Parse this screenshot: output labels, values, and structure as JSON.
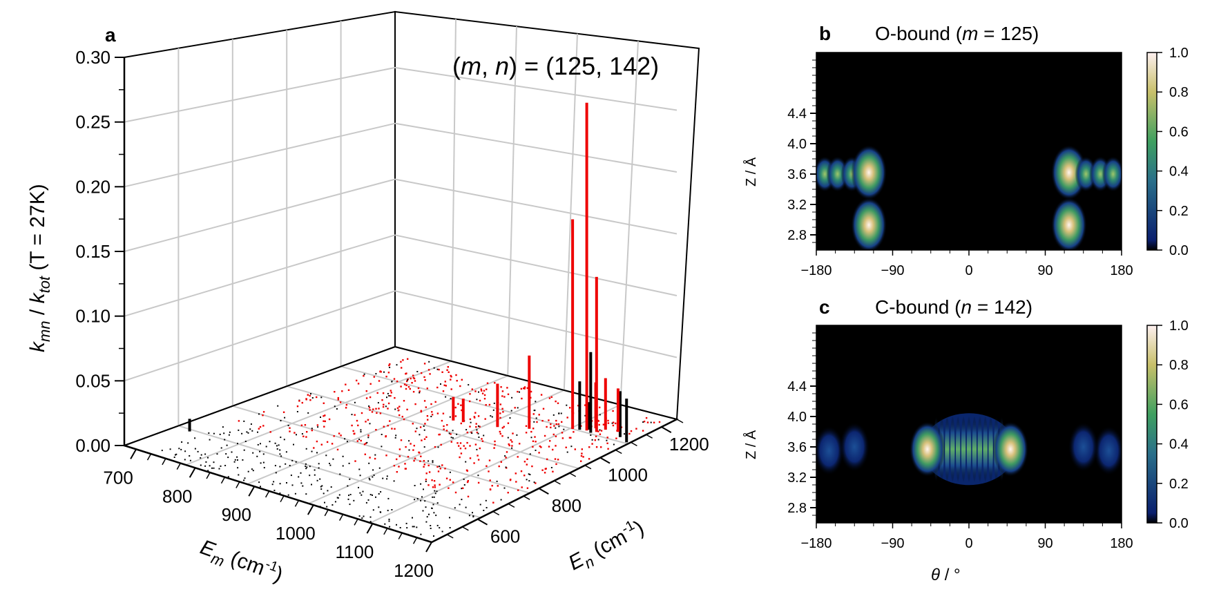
{
  "chart_data": [
    {
      "panel": "a",
      "type": "bar",
      "subtype": "3d-stem",
      "annotation": "(m, n) = (125, 142)",
      "zlabel": "k_mn / k_tot (T = 27K)",
      "xlabel": "E_m (cm-1)",
      "ylabel": "E_n (cm-1)",
      "z_ticks": [
        "0.00",
        "0.05",
        "0.10",
        "0.15",
        "0.20",
        "0.25",
        "0.30"
      ],
      "x_ticks": [
        "700",
        "800",
        "900",
        "1000",
        "1100",
        "1200"
      ],
      "y_ticks": [
        "600",
        "800",
        "1000",
        "1200"
      ],
      "zlim": [
        0,
        0.3
      ],
      "xlim": [
        680,
        1200
      ],
      "ylim": [
        450,
        1250
      ],
      "grid": true,
      "colors": {
        "red_series": "#ee0000",
        "black_series": "#000000",
        "grid": "#c8c8c8"
      },
      "red_stems": [
        {
          "Em": 1120,
          "En": 1100,
          "value": 0.285
        },
        {
          "Em": 1100,
          "En": 1090,
          "value": 0.182
        },
        {
          "Em": 1135,
          "En": 1105,
          "value": 0.135
        },
        {
          "Em": 1050,
          "En": 1040,
          "value": 0.063
        },
        {
          "Em": 1010,
          "En": 1010,
          "value": 0.037
        },
        {
          "Em": 960,
          "En": 990,
          "value": 0.02
        },
        {
          "Em": 945,
          "En": 985,
          "value": 0.02
        },
        {
          "Em": 1160,
          "En": 1130,
          "value": 0.038
        },
        {
          "Em": 1125,
          "En": 1120,
          "value": 0.04
        },
        {
          "Em": 1140,
          "En": 1125,
          "value": 0.045
        }
      ],
      "black_stems": [
        {
          "Em": 1130,
          "En": 1095,
          "value": 0.07
        },
        {
          "Em": 1110,
          "En": 1095,
          "value": 0.042
        },
        {
          "Em": 1175,
          "En": 1110,
          "value": 0.04
        },
        {
          "Em": 1195,
          "En": 1095,
          "value": 0.038
        },
        {
          "Em": 1120,
          "En": 1105,
          "value": 0.024
        },
        {
          "Em": 705,
          "En": 600,
          "value": 0.01
        }
      ]
    },
    {
      "panel": "b",
      "type": "heatmap",
      "title": "O-bound (m = 125)",
      "xlabel": "",
      "ylabel": "Z / Å",
      "x_ticks": [
        "−180",
        "−90",
        "0",
        "90",
        "180"
      ],
      "y_ticks": [
        "2.8",
        "3.2",
        "3.6",
        "4.0",
        "4.4"
      ],
      "xlim": [
        -180,
        180
      ],
      "ylim": [
        2.6,
        5.2
      ],
      "colorbar_ticks": [
        "0.0",
        "0.2",
        "0.4",
        "0.6",
        "0.8",
        "1.0"
      ],
      "colorbar_range": [
        0,
        1
      ],
      "colormap": [
        "#000000",
        "#0a1f6e",
        "#2a6f8a",
        "#3fa060",
        "#c8c06a",
        "#ffffff"
      ],
      "lobes": [
        {
          "theta": -170,
          "z": 3.6,
          "value": 0.55
        },
        {
          "theta": -155,
          "z": 3.6,
          "value": 0.6
        },
        {
          "theta": -138,
          "z": 3.6,
          "value": 0.55
        },
        {
          "theta": -118,
          "z": 3.62,
          "value": 0.95
        },
        {
          "theta": -118,
          "z": 2.93,
          "value": 0.9
        },
        {
          "theta": 118,
          "z": 3.62,
          "value": 0.95
        },
        {
          "theta": 118,
          "z": 2.93,
          "value": 0.9
        },
        {
          "theta": 138,
          "z": 3.6,
          "value": 0.55
        },
        {
          "theta": 155,
          "z": 3.6,
          "value": 0.6
        },
        {
          "theta": 170,
          "z": 3.6,
          "value": 0.55
        }
      ]
    },
    {
      "panel": "c",
      "type": "heatmap",
      "title": "C-bound (n = 142)",
      "xlabel": "θ / °",
      "ylabel": "Z / Å",
      "x_ticks": [
        "−180",
        "−90",
        "0",
        "90",
        "180"
      ],
      "y_ticks": [
        "2.8",
        "3.2",
        "3.6",
        "4.0",
        "4.4"
      ],
      "xlim": [
        -180,
        180
      ],
      "ylim": [
        2.6,
        5.2
      ],
      "colorbar_ticks": [
        "0.0",
        "0.2",
        "0.4",
        "0.6",
        "0.8",
        "1.0"
      ],
      "colorbar_range": [
        0,
        1
      ],
      "colormap": [
        "#000000",
        "#0a1f6e",
        "#2a6f8a",
        "#3fa060",
        "#c8c06a",
        "#ffffff"
      ],
      "fringes": {
        "theta_min": -50,
        "theta_max": 50,
        "z_center": 3.57,
        "count": 13
      },
      "lobes": [
        {
          "theta": -49,
          "z": 3.57,
          "value": 1.0
        },
        {
          "theta": 49,
          "z": 3.57,
          "value": 1.0
        },
        {
          "theta": -165,
          "z": 3.55,
          "value": 0.25
        },
        {
          "theta": 165,
          "z": 3.55,
          "value": 0.25
        },
        {
          "theta": -135,
          "z": 3.6,
          "value": 0.2
        },
        {
          "theta": 135,
          "z": 3.6,
          "value": 0.2
        }
      ]
    }
  ],
  "labels": {
    "a": "a",
    "b": "b",
    "c": "c",
    "annotation_prefix": "(",
    "m": "m",
    "n": "n",
    "annotation_suffix": ") = (125, 142)",
    "z_k": "k",
    "z_mn": "mn",
    "z_sep": " / ",
    "z_ktot_k": "k",
    "z_tot": "tot",
    "z_tail": " (T = 27K)",
    "xE": "E",
    "xm": "m",
    "x_unit": " (cm",
    "x_exp": "-1",
    "x_close": ")",
    "yE": "E",
    "yn": "n",
    "b_title_prefix": "O-bound (",
    "b_title_var": "m",
    "b_title_suffix": " = 125)",
    "c_title_prefix": "C-bound (",
    "c_title_var": "n",
    "c_title_suffix": " = 142)",
    "zlabel_2d": "Z / Å",
    "theta_sym": "θ",
    "theta_unit": " / °"
  }
}
